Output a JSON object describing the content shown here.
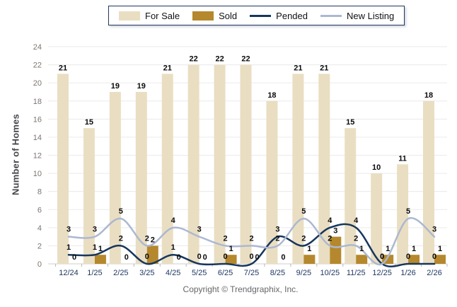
{
  "chart_data": {
    "type": "combo-bar-line",
    "categories": [
      "12/24",
      "1/25",
      "2/25",
      "3/25",
      "4/25",
      "5/25",
      "6/25",
      "7/25",
      "8/25",
      "9/25",
      "10/25",
      "11/25",
      "12/25",
      "1/26",
      "2/26"
    ],
    "series": [
      {
        "name": "For Sale",
        "type": "bar",
        "color": "#EADEC2",
        "values": [
          21,
          15,
          19,
          19,
          21,
          22,
          22,
          22,
          18,
          21,
          21,
          15,
          10,
          11,
          18
        ]
      },
      {
        "name": "Sold",
        "type": "bar",
        "color": "#B5882D",
        "values": [
          0,
          1,
          0,
          2,
          0,
          0,
          1,
          0,
          0,
          1,
          3,
          1,
          1,
          1,
          1
        ]
      },
      {
        "name": "Pended",
        "type": "line",
        "color": "#17365D",
        "values": [
          1,
          1,
          2,
          0,
          1,
          0,
          0,
          0,
          3,
          2,
          4,
          4,
          0,
          0,
          0
        ]
      },
      {
        "name": "New Listing",
        "type": "line",
        "color": "#ABB8D0",
        "values": [
          3,
          3,
          5,
          2,
          4,
          3,
          2,
          2,
          2,
          5,
          2,
          2,
          0,
          5,
          3
        ]
      }
    ],
    "title": "",
    "xlabel": "",
    "ylabel": "Number of Homes",
    "ylim": [
      0,
      24
    ],
    "ytick_step": 2,
    "grid": true,
    "legend_position": "top"
  },
  "colors": {
    "grid_line": "#EAEAEA",
    "baseline": "#CFCFCF",
    "tick_mark": "#B8B8B8",
    "x_label": "#1F3864",
    "y_label": "#7D7470",
    "data_label": "#0a0a0a",
    "legend_border": "#24365E"
  },
  "copyright": "Copyright © Trendgraphix, Inc."
}
